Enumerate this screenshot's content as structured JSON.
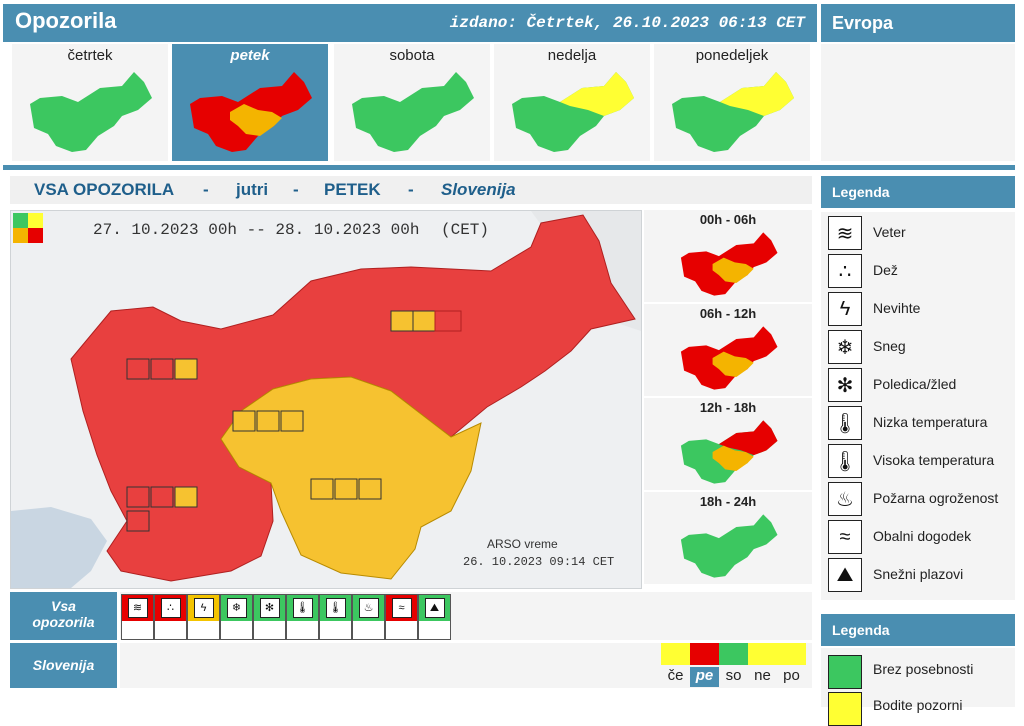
{
  "header": {
    "title": "Opozorila",
    "issued": "izdano: Četrtek, 26.10.2023 06:13 CET",
    "region_tab": "Evropa"
  },
  "colors": {
    "red": "#e60000",
    "orange": "#f4b400",
    "yellow": "#ffff33",
    "green": "#3cc760",
    "brand": "#4a8eb1"
  },
  "days": [
    {
      "label": "četrtek",
      "selected": false
    },
    {
      "label": "petek",
      "selected": true
    },
    {
      "label": "sobota",
      "selected": false
    },
    {
      "label": "nedelja",
      "selected": false
    },
    {
      "label": "ponedeljek",
      "selected": false
    }
  ],
  "section": {
    "part1": "VSA OPOZORILA",
    "sep1": "-",
    "part2": "jutri",
    "sep2": "-",
    "part3": "PETEK",
    "sep3": "-",
    "part4": "Slovenija"
  },
  "main_map": {
    "date_range": "27. 10.2023 00h -- 28. 10.2023 00h",
    "timezone": "(CET)",
    "credit": "ARSO vreme",
    "stamp": "26. 10.2023 09:14 CET"
  },
  "time_slots": [
    {
      "label": "00h - 06h"
    },
    {
      "label": "06h - 12h"
    },
    {
      "label": "12h - 18h"
    },
    {
      "label": "18h - 24h"
    }
  ],
  "bottom": {
    "row1_label": "Vsa opozorila",
    "row2_label": "Slovenija",
    "hazard_levels": [
      "red",
      "red",
      "yellow",
      "green",
      "green",
      "green",
      "green",
      "green",
      "red",
      "green"
    ],
    "day_abbrevs": [
      "če",
      "pe",
      "so",
      "ne",
      "po"
    ],
    "day_colors": [
      "yellow",
      "red",
      "green",
      "yellow",
      "yellow"
    ]
  },
  "legend": {
    "header": "Legenda",
    "items": [
      {
        "label": "Veter",
        "icon": "wind-icon",
        "glyph": "≋"
      },
      {
        "label": "Dež",
        "icon": "rain-icon",
        "glyph": "∴"
      },
      {
        "label": "Nevihte",
        "icon": "lightning-icon",
        "glyph": "ϟ"
      },
      {
        "label": "Sneg",
        "icon": "snow-icon",
        "glyph": "❄"
      },
      {
        "label": "Poledica/žled",
        "icon": "ice-icon",
        "glyph": "✻"
      },
      {
        "label": "Nizka temperatura",
        "icon": "low-temperature-icon",
        "glyph": "🌡"
      },
      {
        "label": "Visoka temperatura",
        "icon": "high-temperature-icon",
        "glyph": "🌡"
      },
      {
        "label": "Požarna ogroženost",
        "icon": "fire-icon",
        "glyph": "♨"
      },
      {
        "label": "Obalni dogodek",
        "icon": "coastal-icon",
        "glyph": "≈"
      },
      {
        "label": "Snežni plazovi",
        "icon": "avalanche-icon",
        "glyph": "⛰"
      }
    ],
    "header2": "Legenda",
    "levels": [
      {
        "label": "Brez posebnosti",
        "color": "#3cc760"
      },
      {
        "label": "Bodite pozorni",
        "color": "#ffff33"
      }
    ]
  }
}
